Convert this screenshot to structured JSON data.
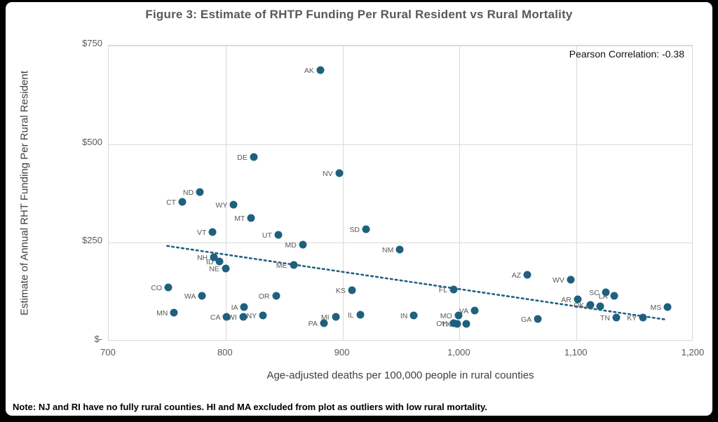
{
  "page": {
    "title": "Figure 3: Estimate of RHTP Funding Per Rural Resident vs Rural Mortality",
    "note": "Note: NJ and RI have no fully rural counties. HI and MA excluded from plot as outliers with low rural mortality."
  },
  "chart_data": {
    "type": "scatter",
    "title": "Figure 3: Estimate of RHTP Funding Per Rural Resident vs Rural Mortality",
    "xlabel": "Age-adjusted deaths per 100,000 people in rural counties",
    "ylabel": "Estimate of Annual RHT Funding Per Rural Resident",
    "annotation": "Pearson Correlation: -0.38",
    "xlim": [
      700,
      1200
    ],
    "ylim": [
      0,
      750
    ],
    "grid": true,
    "x_ticks": [
      700,
      800,
      900,
      1000,
      1100,
      1200
    ],
    "x_tick_labels": [
      "700",
      "800",
      "900",
      "1,000",
      "1,100",
      "1,200"
    ],
    "y_ticks": [
      0,
      250,
      500,
      750
    ],
    "y_tick_labels": [
      "$-",
      "$250",
      "$500",
      "$750"
    ],
    "point_color": "#20607F",
    "trendline": {
      "style": "dotted",
      "color": "#1F6083",
      "x1": 750,
      "y1": 242,
      "x2": 1177,
      "y2": 55
    },
    "points": [
      {
        "label": "AK",
        "x": 881,
        "y": 687
      },
      {
        "label": "DE",
        "x": 824,
        "y": 467
      },
      {
        "label": "NV",
        "x": 897,
        "y": 427
      },
      {
        "label": "ND",
        "x": 778,
        "y": 379
      },
      {
        "label": "CT",
        "x": 763,
        "y": 353
      },
      {
        "label": "WY",
        "x": 807,
        "y": 347
      },
      {
        "label": "MT",
        "x": 822,
        "y": 312
      },
      {
        "label": "SD",
        "x": 920,
        "y": 284
      },
      {
        "label": "VT",
        "x": 789,
        "y": 278
      },
      {
        "label": "UT",
        "x": 845,
        "y": 270
      },
      {
        "label": "MD",
        "x": 866,
        "y": 246
      },
      {
        "label": "NM",
        "x": 949,
        "y": 232
      },
      {
        "label": "NH",
        "x": 790,
        "y": 213
      },
      {
        "label": "ID",
        "x": 795,
        "y": 202
      },
      {
        "label": "ME",
        "x": 858,
        "y": 193
      },
      {
        "label": "NE",
        "x": 800,
        "y": 184
      },
      {
        "label": "AZ",
        "x": 1058,
        "y": 168
      },
      {
        "label": "WV",
        "x": 1095,
        "y": 156
      },
      {
        "label": "CO",
        "x": 751,
        "y": 137
      },
      {
        "label": "FL",
        "x": 995,
        "y": 131
      },
      {
        "label": "KS",
        "x": 908,
        "y": 129
      },
      {
        "label": "SC",
        "x": 1125,
        "y": 124
      },
      {
        "label": "LA",
        "x": 1132,
        "y": 116
      },
      {
        "label": "WA",
        "x": 780,
        "y": 115
      },
      {
        "label": "OR",
        "x": 843,
        "y": 115
      },
      {
        "label": "AR",
        "x": 1101,
        "y": 106
      },
      {
        "label": "OK",
        "x": 1112,
        "y": 93
      },
      {
        "label": "AL",
        "x": 1120,
        "y": 89
      },
      {
        "label": "IA",
        "x": 816,
        "y": 87
      },
      {
        "label": "MS",
        "x": 1178,
        "y": 87
      },
      {
        "label": "VA",
        "x": 1013,
        "y": 79
      },
      {
        "label": "MN",
        "x": 756,
        "y": 72
      },
      {
        "label": "IL",
        "x": 915,
        "y": 68
      },
      {
        "label": "NY",
        "x": 832,
        "y": 66
      },
      {
        "label": "MO",
        "x": 999,
        "y": 66
      },
      {
        "label": "IN",
        "x": 961,
        "y": 65
      },
      {
        "label": "CA",
        "x": 801,
        "y": 62
      },
      {
        "label": "WI",
        "x": 815,
        "y": 62
      },
      {
        "label": "MI",
        "x": 894,
        "y": 62
      },
      {
        "label": "TN",
        "x": 1134,
        "y": 60
      },
      {
        "label": "KY",
        "x": 1157,
        "y": 60
      },
      {
        "label": "GA",
        "x": 1067,
        "y": 57
      },
      {
        "label": "OH",
        "x": 995,
        "y": 47
      },
      {
        "label": "PA",
        "x": 884,
        "y": 47
      },
      {
        "label": "TX",
        "x": 998,
        "y": 44
      },
      {
        "label": "NC",
        "x": 1006,
        "y": 44
      }
    ]
  }
}
